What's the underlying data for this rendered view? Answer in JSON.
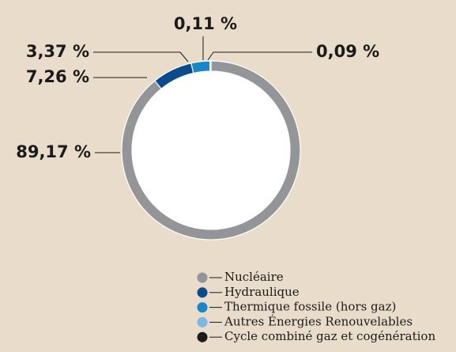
{
  "chart_data": {
    "type": "donut",
    "categories": [
      "Nucléaire",
      "Hydraulique",
      "Thermique fossile (hors gaz)",
      "Autres Énergies Renouvelables",
      "Cycle combiné gaz et cogénération"
    ],
    "values": [
      89.17,
      7.26,
      3.37,
      0.11,
      0.09
    ],
    "value_labels": [
      "89,17 %",
      "7,26 %",
      "3,37 %",
      "0,11 %",
      "0,09 %"
    ],
    "colors": [
      "#939598",
      "#0b4a8b",
      "#1a86c8",
      "#7cb8e6",
      "#1c1c1c"
    ]
  }
}
